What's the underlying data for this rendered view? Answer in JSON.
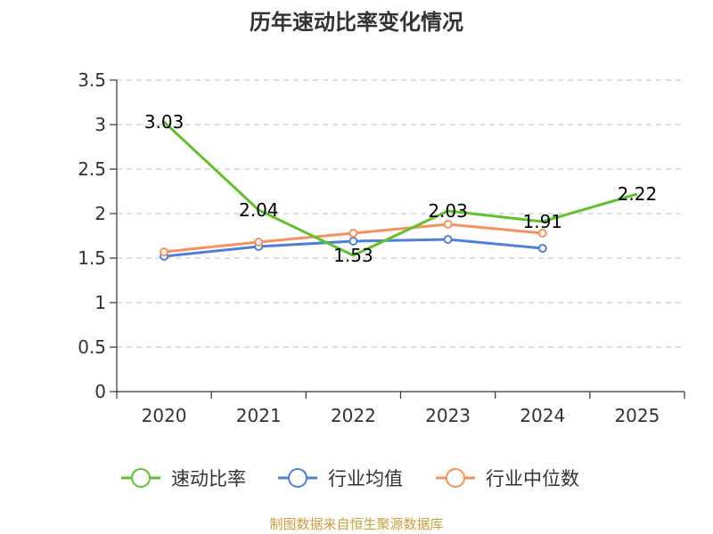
{
  "chart_data": {
    "type": "line",
    "title": "历年速动比率变化情况",
    "categories": [
      "2020",
      "2021",
      "2022",
      "2023",
      "2024",
      "2025"
    ],
    "ylim": [
      0,
      3.5
    ],
    "yticks": [
      "0",
      "0.5",
      "1",
      "1.5",
      "2",
      "2.5",
      "3",
      "3.5"
    ],
    "grid": true,
    "series": [
      {
        "name": "速动比率",
        "color": "#5fc22a",
        "marker": false,
        "show_labels": true,
        "values": [
          3.03,
          2.04,
          1.53,
          2.03,
          1.91,
          2.22
        ],
        "labels": [
          "3.03",
          "2.04",
          "1.53",
          "2.03",
          "1.91",
          "2.22"
        ]
      },
      {
        "name": "行业均值",
        "color": "#4f7fdc",
        "marker": true,
        "show_labels": false,
        "values": [
          1.52,
          1.63,
          1.69,
          1.71,
          1.61,
          null
        ]
      },
      {
        "name": "行业中位数",
        "color": "#f7905c",
        "marker": true,
        "show_labels": false,
        "values": [
          1.57,
          1.68,
          1.78,
          1.88,
          1.78,
          null
        ]
      }
    ],
    "legend_position": "bottom",
    "source": "制图数据来自恒生聚源数据库"
  }
}
